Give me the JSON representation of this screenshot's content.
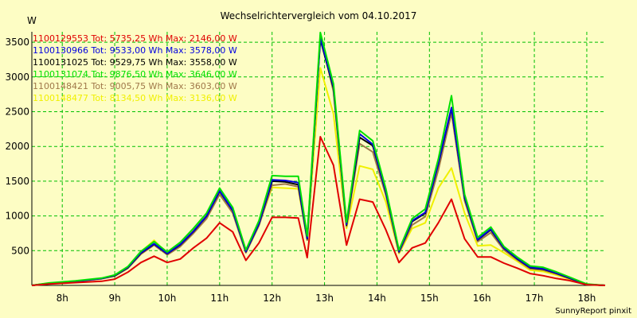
{
  "chart_data": {
    "type": "line",
    "title": "Wechselrichtervergleich vom 04.10.2017",
    "ylabel": "W",
    "xlabel": "",
    "ylim": [
      0,
      3650
    ],
    "yticks": [
      500,
      1000,
      1500,
      2000,
      2500,
      3000,
      3500
    ],
    "xlim": [
      7.42,
      18.35
    ],
    "xticks": [
      8,
      9,
      10,
      11,
      12,
      13,
      14,
      15,
      16,
      17,
      18
    ],
    "xtick_labels": [
      "8h",
      "9h",
      "10h",
      "11h",
      "12h",
      "13h",
      "14h",
      "15h",
      "16h",
      "17h",
      "18h"
    ],
    "grid": true,
    "legend_position": "top-left",
    "footer": "SunnyReport pinxit",
    "x": [
      7.42,
      7.75,
      8.25,
      8.75,
      9.0,
      9.25,
      9.5,
      9.75,
      10.0,
      10.25,
      10.5,
      10.75,
      11.0,
      11.25,
      11.5,
      11.75,
      12.0,
      12.25,
      12.5,
      12.67,
      12.92,
      13.17,
      13.42,
      13.67,
      13.92,
      14.17,
      14.42,
      14.67,
      14.92,
      15.17,
      15.42,
      15.67,
      15.92,
      16.17,
      16.42,
      16.67,
      16.92,
      17.17,
      17.42,
      17.67,
      18.0,
      18.35
    ],
    "series": [
      {
        "name": "1100129553",
        "legend": "1100129553 Tot: 5735,25 Wh Max: 2146,00 W",
        "color": "#e00000",
        "values": [
          0,
          20,
          40,
          60,
          90,
          190,
          330,
          420,
          330,
          380,
          540,
          680,
          900,
          770,
          360,
          610,
          980,
          980,
          970,
          400,
          2140,
          1730,
          580,
          1240,
          1200,
          800,
          330,
          540,
          610,
          900,
          1240,
          670,
          410,
          410,
          320,
          250,
          170,
          140,
          100,
          70,
          10,
          0
        ]
      },
      {
        "name": "1100130966",
        "legend": "1100130966 Tot: 9533,00 Wh Max: 3578,00 W",
        "color": "#0000e0",
        "values": [
          0,
          30,
          60,
          100,
          145,
          260,
          470,
          600,
          460,
          590,
          780,
          1000,
          1360,
          1080,
          490,
          890,
          1520,
          1510,
          1480,
          680,
          3560,
          2860,
          880,
          2180,
          2030,
          1350,
          490,
          930,
          1050,
          1760,
          2560,
          1270,
          660,
          810,
          540,
          390,
          260,
          240,
          180,
          110,
          15,
          0
        ]
      },
      {
        "name": "1100131025",
        "legend": "1100131025 Tot: 9529,75 Wh Max: 3558,00 W",
        "color": "#000000",
        "values": [
          0,
          30,
          60,
          100,
          140,
          255,
          465,
          595,
          455,
          585,
          775,
          995,
          1355,
          1075,
          485,
          885,
          1500,
          1490,
          1450,
          670,
          3540,
          2840,
          870,
          2130,
          2010,
          1340,
          485,
          920,
          1040,
          1750,
          2550,
          1260,
          655,
          800,
          535,
          385,
          255,
          235,
          175,
          105,
          15,
          0
        ]
      },
      {
        "name": "1100131074",
        "legend": "1100131074 Tot: 9876,50 Wh Max: 3646,00 W",
        "color": "#00e000",
        "values": [
          0,
          35,
          65,
          105,
          150,
          270,
          490,
          630,
          480,
          620,
          820,
          1040,
          1400,
          1120,
          510,
          930,
          1580,
          1570,
          1570,
          710,
          3640,
          2900,
          910,
          2230,
          2080,
          1390,
          510,
          960,
          1100,
          1820,
          2730,
          1310,
          690,
          840,
          560,
          410,
          280,
          260,
          195,
          120,
          20,
          0
        ]
      },
      {
        "name": "1100148421",
        "legend": "1100148421 Tot: 9005,75 Wh Max: 3603,00 W",
        "color": "#a0784a",
        "values": [
          0,
          30,
          55,
          95,
          135,
          245,
          450,
          580,
          440,
          560,
          750,
          960,
          1310,
          1040,
          470,
          860,
          1440,
          1460,
          1420,
          650,
          3600,
          2790,
          850,
          2040,
          1920,
          1300,
          470,
          870,
          990,
          1660,
          2480,
          1220,
          630,
          760,
          510,
          370,
          240,
          220,
          165,
          100,
          15,
          0
        ]
      },
      {
        "name": "1100148477",
        "legend": "1100148477 Tot: 8134,50 Wh Max: 3136,00 W",
        "color": "#f0f000",
        "values": [
          0,
          30,
          60,
          100,
          145,
          265,
          480,
          650,
          460,
          600,
          800,
          1020,
          1330,
          1060,
          480,
          880,
          1410,
          1400,
          1390,
          660,
          3130,
          2470,
          820,
          1720,
          1670,
          1200,
          460,
          820,
          900,
          1400,
          1690,
          1040,
          570,
          580,
          470,
          350,
          220,
          200,
          150,
          90,
          15,
          0
        ]
      }
    ]
  }
}
